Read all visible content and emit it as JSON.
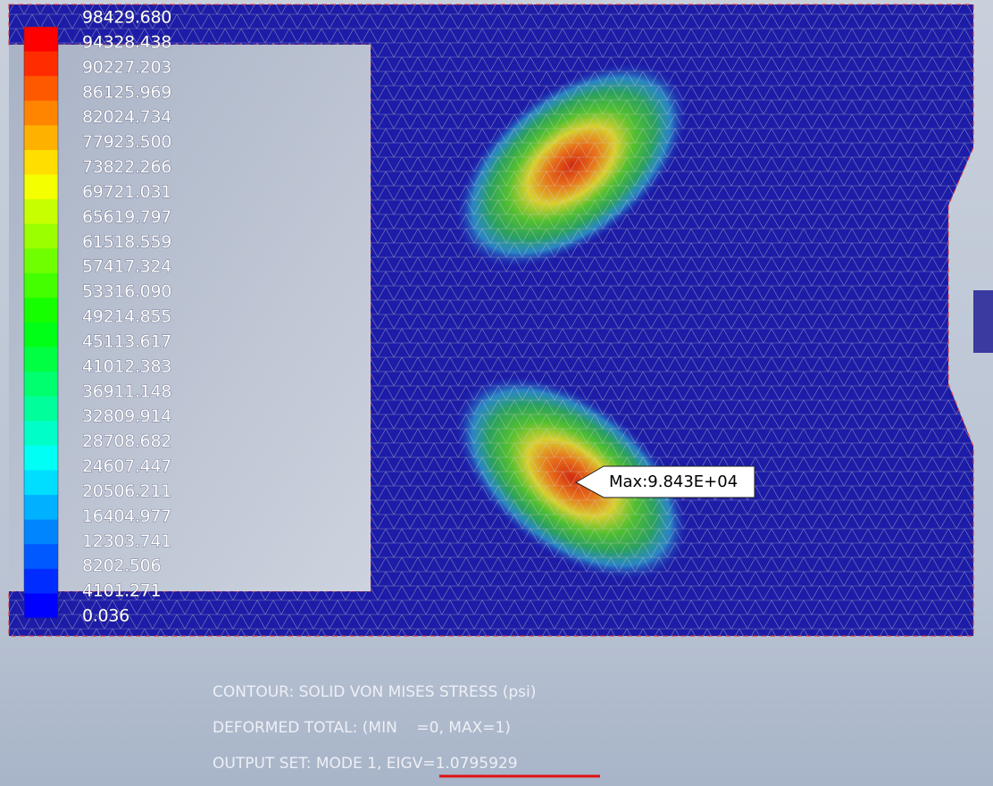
{
  "legend": {
    "labels": [
      "98429.680",
      "94328.438",
      "90227.203",
      "86125.969",
      "82024.734",
      "77923.500",
      "73822.266",
      "69721.031",
      "65619.797",
      "61518.559",
      "57417.324",
      "53316.090",
      "49214.855",
      "45113.617",
      "41012.383",
      "36911.148",
      "32809.914",
      "28708.682",
      "24607.447",
      "20506.211",
      "16404.977",
      "12303.741",
      "8202.506",
      "4101.271",
      "0.036"
    ]
  },
  "max_callout": "Max:9.843E+04",
  "footer": {
    "contour": "CONTOUR: SOLID VON MISES STRESS (psi)",
    "deformed": "DEFORMED TOTAL: (MIN    =0, MAX=1)",
    "output_set": "OUTPUT SET: MODE 1, ",
    "eigv": "EIGV=1.0795929"
  }
}
